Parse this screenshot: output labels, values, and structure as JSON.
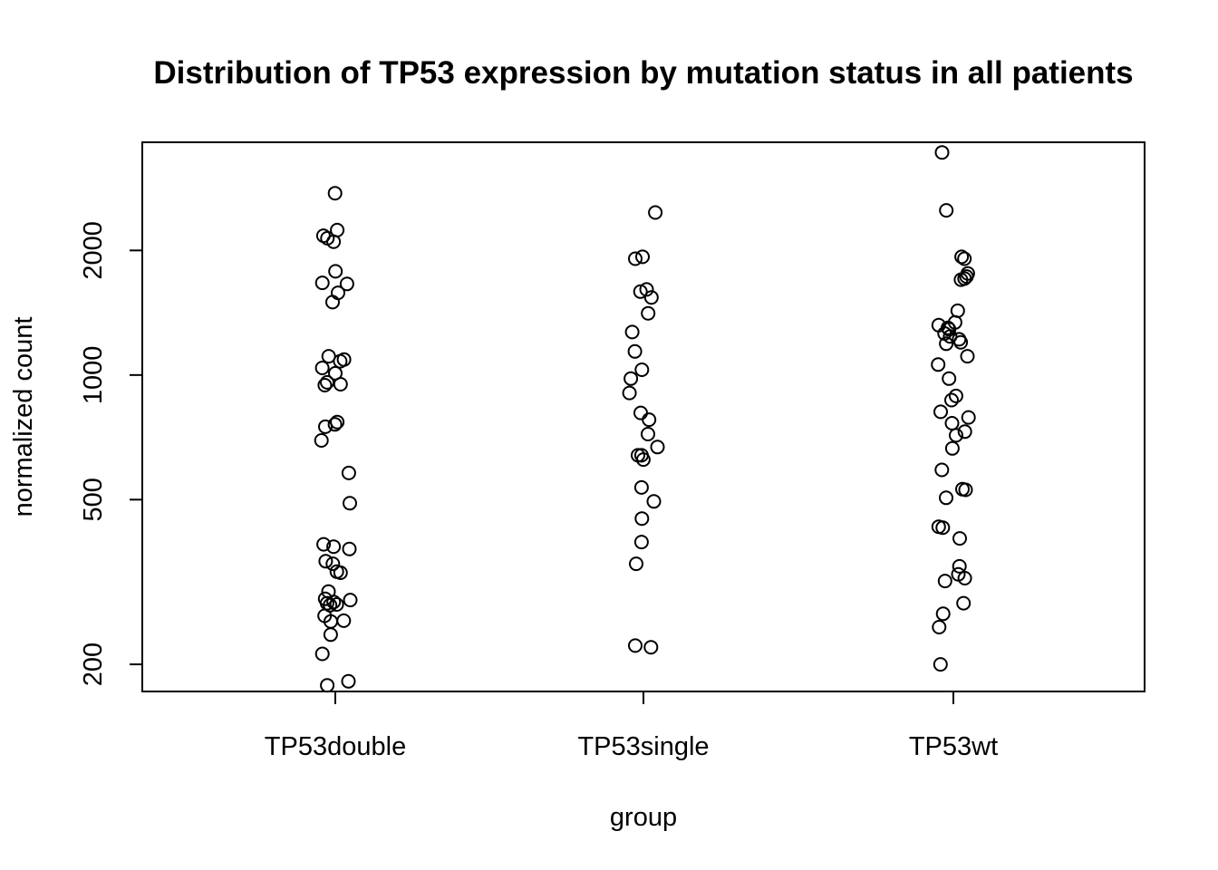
{
  "chart_data": {
    "type": "scatter",
    "title": "Distribution of TP53 expression by mutation status in all patients",
    "xlabel": "group",
    "ylabel": "normalized count",
    "categories": [
      "TP53double",
      "TP53single",
      "TP53wt"
    ],
    "y_scale": "log",
    "ylim": [
      172,
      3650
    ],
    "y_ticks": [
      200,
      500,
      1000,
      2000
    ],
    "grid": false,
    "series": [
      {
        "category": "TP53double",
        "points": [
          {
            "x": "TP53double",
            "y": 2750
          },
          {
            "x": "TP53double",
            "y": 2240
          },
          {
            "x": "TP53double",
            "y": 2170
          },
          {
            "x": "TP53double",
            "y": 2140
          },
          {
            "x": "TP53double",
            "y": 2100
          },
          {
            "x": "TP53double",
            "y": 1780
          },
          {
            "x": "TP53double",
            "y": 1670
          },
          {
            "x": "TP53double",
            "y": 1660
          },
          {
            "x": "TP53double",
            "y": 1580
          },
          {
            "x": "TP53double",
            "y": 1500
          },
          {
            "x": "TP53double",
            "y": 1110
          },
          {
            "x": "TP53double",
            "y": 1090
          },
          {
            "x": "TP53double",
            "y": 1080
          },
          {
            "x": "TP53double",
            "y": 1040
          },
          {
            "x": "TP53double",
            "y": 1010
          },
          {
            "x": "TP53double",
            "y": 960
          },
          {
            "x": "TP53double",
            "y": 950
          },
          {
            "x": "TP53double",
            "y": 945
          },
          {
            "x": "TP53double",
            "y": 770
          },
          {
            "x": "TP53double",
            "y": 760
          },
          {
            "x": "TP53double",
            "y": 750
          },
          {
            "x": "TP53double",
            "y": 695
          },
          {
            "x": "TP53double",
            "y": 580
          },
          {
            "x": "TP53double",
            "y": 490
          },
          {
            "x": "TP53double",
            "y": 390
          },
          {
            "x": "TP53double",
            "y": 385
          },
          {
            "x": "TP53double",
            "y": 380
          },
          {
            "x": "TP53double",
            "y": 355
          },
          {
            "x": "TP53double",
            "y": 350
          },
          {
            "x": "TP53double",
            "y": 335
          },
          {
            "x": "TP53double",
            "y": 333
          },
          {
            "x": "TP53double",
            "y": 300
          },
          {
            "x": "TP53double",
            "y": 288
          },
          {
            "x": "TP53double",
            "y": 286
          },
          {
            "x": "TP53double",
            "y": 283
          },
          {
            "x": "TP53double",
            "y": 281
          },
          {
            "x": "TP53double",
            "y": 279
          },
          {
            "x": "TP53double",
            "y": 278
          },
          {
            "x": "TP53double",
            "y": 262
          },
          {
            "x": "TP53double",
            "y": 255
          },
          {
            "x": "TP53double",
            "y": 254
          },
          {
            "x": "TP53double",
            "y": 236
          },
          {
            "x": "TP53double",
            "y": 212
          },
          {
            "x": "TP53double",
            "y": 182
          },
          {
            "x": "TP53double",
            "y": 178
          }
        ]
      },
      {
        "category": "TP53single",
        "points": [
          {
            "x": "TP53single",
            "y": 2470
          },
          {
            "x": "TP53single",
            "y": 1930
          },
          {
            "x": "TP53single",
            "y": 1910
          },
          {
            "x": "TP53single",
            "y": 1610
          },
          {
            "x": "TP53single",
            "y": 1590
          },
          {
            "x": "TP53single",
            "y": 1540
          },
          {
            "x": "TP53single",
            "y": 1410
          },
          {
            "x": "TP53single",
            "y": 1270
          },
          {
            "x": "TP53single",
            "y": 1140
          },
          {
            "x": "TP53single",
            "y": 1030
          },
          {
            "x": "TP53single",
            "y": 980
          },
          {
            "x": "TP53single",
            "y": 905
          },
          {
            "x": "TP53single",
            "y": 810
          },
          {
            "x": "TP53single",
            "y": 780
          },
          {
            "x": "TP53single",
            "y": 720
          },
          {
            "x": "TP53single",
            "y": 670
          },
          {
            "x": "TP53single",
            "y": 640
          },
          {
            "x": "TP53single",
            "y": 640
          },
          {
            "x": "TP53single",
            "y": 625
          },
          {
            "x": "TP53single",
            "y": 535
          },
          {
            "x": "TP53single",
            "y": 495
          },
          {
            "x": "TP53single",
            "y": 450
          },
          {
            "x": "TP53single",
            "y": 395
          },
          {
            "x": "TP53single",
            "y": 350
          },
          {
            "x": "TP53single",
            "y": 222
          },
          {
            "x": "TP53single",
            "y": 220
          }
        ]
      },
      {
        "category": "TP53wt",
        "points": [
          {
            "x": "TP53wt",
            "y": 3450
          },
          {
            "x": "TP53wt",
            "y": 2500
          },
          {
            "x": "TP53wt",
            "y": 1930
          },
          {
            "x": "TP53wt",
            "y": 1910
          },
          {
            "x": "TP53wt",
            "y": 1760
          },
          {
            "x": "TP53wt",
            "y": 1730
          },
          {
            "x": "TP53wt",
            "y": 1710
          },
          {
            "x": "TP53wt",
            "y": 1700
          },
          {
            "x": "TP53wt",
            "y": 1430
          },
          {
            "x": "TP53wt",
            "y": 1340
          },
          {
            "x": "TP53wt",
            "y": 1320
          },
          {
            "x": "TP53wt",
            "y": 1300
          },
          {
            "x": "TP53wt",
            "y": 1290
          },
          {
            "x": "TP53wt",
            "y": 1260
          },
          {
            "x": "TP53wt",
            "y": 1240
          },
          {
            "x": "TP53wt",
            "y": 1220
          },
          {
            "x": "TP53wt",
            "y": 1200
          },
          {
            "x": "TP53wt",
            "y": 1190
          },
          {
            "x": "TP53wt",
            "y": 1110
          },
          {
            "x": "TP53wt",
            "y": 1060
          },
          {
            "x": "TP53wt",
            "y": 980
          },
          {
            "x": "TP53wt",
            "y": 890
          },
          {
            "x": "TP53wt",
            "y": 870
          },
          {
            "x": "TP53wt",
            "y": 815
          },
          {
            "x": "TP53wt",
            "y": 790
          },
          {
            "x": "TP53wt",
            "y": 765
          },
          {
            "x": "TP53wt",
            "y": 730
          },
          {
            "x": "TP53wt",
            "y": 715
          },
          {
            "x": "TP53wt",
            "y": 665
          },
          {
            "x": "TP53wt",
            "y": 590
          },
          {
            "x": "TP53wt",
            "y": 530
          },
          {
            "x": "TP53wt",
            "y": 528
          },
          {
            "x": "TP53wt",
            "y": 505
          },
          {
            "x": "TP53wt",
            "y": 430
          },
          {
            "x": "TP53wt",
            "y": 428
          },
          {
            "x": "TP53wt",
            "y": 403
          },
          {
            "x": "TP53wt",
            "y": 345
          },
          {
            "x": "TP53wt",
            "y": 330
          },
          {
            "x": "TP53wt",
            "y": 323
          },
          {
            "x": "TP53wt",
            "y": 318
          },
          {
            "x": "TP53wt",
            "y": 281
          },
          {
            "x": "TP53wt",
            "y": 265
          },
          {
            "x": "TP53wt",
            "y": 246
          },
          {
            "x": "TP53wt",
            "y": 200
          }
        ]
      }
    ]
  }
}
